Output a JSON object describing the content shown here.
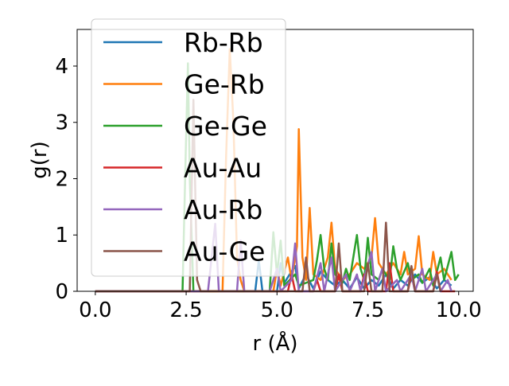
{
  "chart_data": {
    "type": "line",
    "xlabel": "r (Å)",
    "ylabel": "g(r)",
    "xlim": [
      -0.5,
      10.4
    ],
    "ylim": [
      0,
      4.65
    ],
    "x_ticks": [
      0.0,
      2.5,
      5.0,
      7.5,
      10.0
    ],
    "x_tick_labels": [
      "0.0",
      "2.5",
      "5.0",
      "7.5",
      "10.0"
    ],
    "y_ticks": [
      0,
      1,
      2,
      3,
      4
    ],
    "y_tick_labels": [
      "0",
      "1",
      "2",
      "3",
      "4"
    ],
    "grid": false,
    "legend_position": "upper-left",
    "series": [
      {
        "name": "Rb-Rb",
        "color": "#1f77b4",
        "points": [
          [
            0.0,
            0
          ],
          [
            4.4,
            0
          ],
          [
            4.5,
            0.55
          ],
          [
            4.6,
            0
          ],
          [
            5.0,
            0
          ],
          [
            5.1,
            0.5
          ],
          [
            5.2,
            0.15
          ],
          [
            5.5,
            0.45
          ],
          [
            5.6,
            0.05
          ],
          [
            5.8,
            0.3
          ],
          [
            6.0,
            0.05
          ],
          [
            6.2,
            0.35
          ],
          [
            6.4,
            0.2
          ],
          [
            6.6,
            0.1
          ],
          [
            6.8,
            0.2
          ],
          [
            7.0,
            0.05
          ],
          [
            7.2,
            0.25
          ],
          [
            7.4,
            0.05
          ],
          [
            7.6,
            0.2
          ],
          [
            7.8,
            0.1
          ],
          [
            8.0,
            0.3
          ],
          [
            8.2,
            0.05
          ],
          [
            8.4,
            0.2
          ],
          [
            8.6,
            0.1
          ],
          [
            8.8,
            0.3
          ],
          [
            9.0,
            0.15
          ],
          [
            9.2,
            0.25
          ],
          [
            9.4,
            0.05
          ],
          [
            9.6,
            0.2
          ],
          [
            9.8,
            0.1
          ]
        ]
      },
      {
        "name": "Ge-Rb",
        "color": "#ff7f0e",
        "points": [
          [
            0.0,
            0
          ],
          [
            3.5,
            0
          ],
          [
            3.6,
            2.4
          ],
          [
            3.7,
            4.3
          ],
          [
            3.8,
            3.0
          ],
          [
            3.9,
            0.6
          ],
          [
            4.0,
            0.2
          ],
          [
            4.1,
            0
          ],
          [
            4.9,
            0
          ],
          [
            5.0,
            0.4
          ],
          [
            5.1,
            0.1
          ],
          [
            5.3,
            0.6
          ],
          [
            5.4,
            0.2
          ],
          [
            5.55,
            0.8
          ],
          [
            5.6,
            2.88
          ],
          [
            5.7,
            0.6
          ],
          [
            5.8,
            0.2
          ],
          [
            5.9,
            1.48
          ],
          [
            6.0,
            0.3
          ],
          [
            6.2,
            0.2
          ],
          [
            6.4,
            0.6
          ],
          [
            6.5,
            1.22
          ],
          [
            6.6,
            0.4
          ],
          [
            6.8,
            0.2
          ],
          [
            7.0,
            0.3
          ],
          [
            7.2,
            0.5
          ],
          [
            7.4,
            0.4
          ],
          [
            7.6,
            0.6
          ],
          [
            7.7,
            1.3
          ],
          [
            7.8,
            0.5
          ],
          [
            8.0,
            0.3
          ],
          [
            8.2,
            0.5
          ],
          [
            8.4,
            0.3
          ],
          [
            8.5,
            0.7
          ],
          [
            8.6,
            0.3
          ],
          [
            8.8,
            0.4
          ],
          [
            8.9,
            0.98
          ],
          [
            9.0,
            0.3
          ],
          [
            9.2,
            0.2
          ],
          [
            9.3,
            0.7
          ],
          [
            9.4,
            0.3
          ],
          [
            9.6,
            0.4
          ],
          [
            9.8,
            0.2
          ]
        ]
      },
      {
        "name": "Ge-Ge",
        "color": "#2ca02c",
        "points": [
          [
            0.0,
            0
          ],
          [
            2.4,
            0
          ],
          [
            2.5,
            2.8
          ],
          [
            2.55,
            4.05
          ],
          [
            2.6,
            2.0
          ],
          [
            2.7,
            0
          ],
          [
            4.8,
            0
          ],
          [
            4.9,
            1.05
          ],
          [
            5.0,
            0.3
          ],
          [
            5.1,
            0.9
          ],
          [
            5.2,
            0.1
          ],
          [
            5.5,
            0.3
          ],
          [
            5.6,
            0.1
          ],
          [
            6.0,
            0.2
          ],
          [
            6.1,
            0.55
          ],
          [
            6.2,
            1.0
          ],
          [
            6.3,
            0.4
          ],
          [
            6.4,
            0.2
          ],
          [
            6.5,
            0.85
          ],
          [
            6.6,
            0.3
          ],
          [
            6.8,
            0.15
          ],
          [
            6.9,
            0.4
          ],
          [
            7.0,
            0.2
          ],
          [
            7.1,
            0.6
          ],
          [
            7.2,
            1.0
          ],
          [
            7.3,
            0.4
          ],
          [
            7.4,
            0.2
          ],
          [
            7.5,
            0.95
          ],
          [
            7.6,
            0.3
          ],
          [
            7.8,
            0.2
          ],
          [
            7.9,
            0.4
          ],
          [
            8.1,
            0.2
          ],
          [
            8.2,
            0.8
          ],
          [
            8.3,
            0.4
          ],
          [
            8.4,
            0.2
          ],
          [
            8.6,
            0.5
          ],
          [
            8.7,
            0.2
          ],
          [
            8.9,
            0.3
          ],
          [
            9.0,
            0.15
          ],
          [
            9.2,
            0.4
          ],
          [
            9.3,
            0.1
          ],
          [
            9.5,
            0.6
          ],
          [
            9.6,
            0.2
          ],
          [
            9.8,
            0.7
          ],
          [
            9.9,
            0.2
          ],
          [
            10.0,
            0.3
          ]
        ]
      },
      {
        "name": "Au-Au",
        "color": "#d62728",
        "points": [
          [
            0.0,
            0
          ],
          [
            5.0,
            0
          ],
          [
            5.3,
            0
          ],
          [
            5.4,
            0.3
          ],
          [
            5.5,
            0
          ],
          [
            6.0,
            0
          ],
          [
            6.1,
            0.2
          ],
          [
            6.2,
            0
          ],
          [
            6.6,
            0
          ],
          [
            6.7,
            0.3
          ],
          [
            6.8,
            0
          ],
          [
            7.3,
            0
          ],
          [
            7.4,
            0.3
          ],
          [
            7.5,
            0
          ],
          [
            8.0,
            0
          ],
          [
            8.1,
            0.5
          ],
          [
            8.2,
            0
          ],
          [
            8.6,
            0
          ],
          [
            8.7,
            0.3
          ],
          [
            8.8,
            0
          ],
          [
            9.3,
            0
          ],
          [
            9.4,
            0.35
          ],
          [
            9.5,
            0
          ],
          [
            9.9,
            0
          ]
        ]
      },
      {
        "name": "Au-Rb",
        "color": "#9467bd",
        "points": [
          [
            0.0,
            0
          ],
          [
            3.1,
            0
          ],
          [
            3.3,
            1.2
          ],
          [
            3.4,
            0
          ],
          [
            3.9,
            0
          ],
          [
            4.0,
            0.9
          ],
          [
            4.1,
            0
          ],
          [
            4.8,
            0
          ],
          [
            5.0,
            0.4
          ],
          [
            5.1,
            0
          ],
          [
            5.4,
            0.2
          ],
          [
            5.5,
            0.85
          ],
          [
            5.6,
            0
          ],
          [
            6.0,
            0
          ],
          [
            6.1,
            0.25
          ],
          [
            6.2,
            0.5
          ],
          [
            6.3,
            0
          ],
          [
            6.5,
            0.6
          ],
          [
            6.6,
            0
          ],
          [
            6.9,
            0.3
          ],
          [
            7.0,
            0
          ],
          [
            7.2,
            0.3
          ],
          [
            7.3,
            0
          ],
          [
            7.6,
            0.7
          ],
          [
            7.7,
            0
          ],
          [
            7.9,
            0.4
          ],
          [
            8.0,
            0
          ],
          [
            8.3,
            0.2
          ],
          [
            8.4,
            0
          ],
          [
            8.7,
            0.3
          ],
          [
            8.8,
            0
          ],
          [
            9.0,
            0.4
          ],
          [
            9.1,
            0
          ],
          [
            9.4,
            0.3
          ],
          [
            9.5,
            0
          ],
          [
            9.7,
            0.2
          ],
          [
            9.8,
            0
          ]
        ]
      },
      {
        "name": "Au-Ge",
        "color": "#8c564b",
        "points": [
          [
            0.0,
            0
          ],
          [
            2.6,
            0
          ],
          [
            2.7,
            3.4
          ],
          [
            2.8,
            0.2
          ],
          [
            2.9,
            0
          ],
          [
            5.7,
            0
          ],
          [
            5.8,
            0.6
          ],
          [
            5.9,
            0
          ],
          [
            6.6,
            0
          ],
          [
            6.7,
            0.85
          ],
          [
            6.8,
            0
          ],
          [
            7.4,
            0
          ],
          [
            7.5,
            0.5
          ],
          [
            7.6,
            0
          ],
          [
            7.9,
            0
          ],
          [
            8.0,
            1.22
          ],
          [
            8.1,
            0
          ],
          [
            8.6,
            0
          ],
          [
            8.7,
            0.45
          ],
          [
            8.8,
            0
          ],
          [
            9.3,
            0
          ],
          [
            9.4,
            0.3
          ],
          [
            9.5,
            0
          ]
        ]
      }
    ]
  }
}
